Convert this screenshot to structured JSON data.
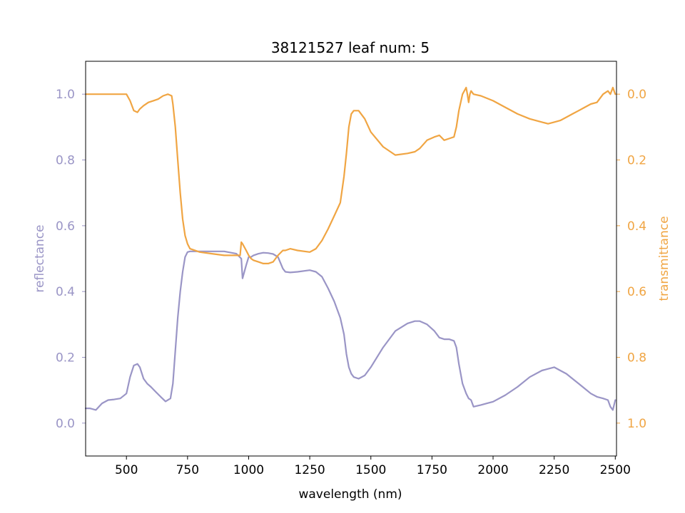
{
  "chart_data": {
    "type": "line",
    "title": "38121527 leaf num: 5",
    "xlabel": "wavelength (nm)",
    "xlim": [
      333,
      2505
    ],
    "x_ticks": [
      "500",
      "750",
      "1000",
      "1250",
      "1500",
      "1750",
      "2000",
      "2250",
      "2500"
    ],
    "grid": false,
    "legend": "none",
    "left_axis": {
      "label": "reflectance",
      "ylim": [
        -0.1,
        1.1
      ],
      "ticks": [
        "0.0",
        "0.2",
        "0.4",
        "0.6",
        "0.8",
        "1.0"
      ],
      "color": "#9a95c6"
    },
    "right_axis": {
      "label": "transmittance",
      "ylim": [
        1.1,
        -0.1
      ],
      "inverted": true,
      "ticks": [
        "0.0",
        "0.2",
        "0.4",
        "0.6",
        "0.8",
        "1.0"
      ],
      "color": "#f0a543"
    },
    "series": [
      {
        "axis": "left",
        "color": "#9a95c6",
        "x": [
          333,
          350,
          375,
          400,
          425,
          450,
          475,
          500,
          515,
          530,
          545,
          555,
          570,
          585,
          600,
          620,
          640,
          660,
          680,
          690,
          700,
          710,
          720,
          730,
          740,
          750,
          760,
          800,
          850,
          900,
          950,
          970,
          975,
          990,
          1000,
          1010,
          1020,
          1040,
          1060,
          1080,
          1100,
          1120,
          1140,
          1150,
          1170,
          1200,
          1250,
          1275,
          1300,
          1325,
          1350,
          1375,
          1390,
          1400,
          1410,
          1420,
          1430,
          1450,
          1475,
          1500,
          1550,
          1600,
          1650,
          1680,
          1700,
          1730,
          1760,
          1780,
          1800,
          1820,
          1840,
          1850,
          1860,
          1875,
          1890,
          1900,
          1910,
          1920,
          1950,
          1975,
          2000,
          2050,
          2100,
          2150,
          2200,
          2225,
          2250,
          2275,
          2300,
          2325,
          2350,
          2375,
          2400,
          2425,
          2450,
          2470,
          2480,
          2490,
          2500
        ],
        "y": [
          0.045,
          0.045,
          0.04,
          0.06,
          0.07,
          0.072,
          0.075,
          0.09,
          0.14,
          0.175,
          0.18,
          0.17,
          0.135,
          0.12,
          0.11,
          0.095,
          0.08,
          0.066,
          0.075,
          0.12,
          0.22,
          0.32,
          0.4,
          0.46,
          0.505,
          0.52,
          0.522,
          0.522,
          0.522,
          0.522,
          0.515,
          0.5,
          0.44,
          0.48,
          0.505,
          0.505,
          0.51,
          0.515,
          0.518,
          0.517,
          0.514,
          0.505,
          0.47,
          0.46,
          0.458,
          0.46,
          0.465,
          0.46,
          0.445,
          0.41,
          0.37,
          0.32,
          0.27,
          0.21,
          0.17,
          0.15,
          0.14,
          0.135,
          0.145,
          0.17,
          0.23,
          0.28,
          0.303,
          0.31,
          0.31,
          0.3,
          0.28,
          0.26,
          0.255,
          0.255,
          0.25,
          0.23,
          0.18,
          0.12,
          0.09,
          0.075,
          0.07,
          0.05,
          0.055,
          0.06,
          0.065,
          0.085,
          0.11,
          0.14,
          0.16,
          0.165,
          0.17,
          0.16,
          0.15,
          0.135,
          0.12,
          0.105,
          0.09,
          0.08,
          0.075,
          0.07,
          0.05,
          0.04,
          0.07
        ]
      },
      {
        "axis": "right",
        "color": "#f0a543",
        "x": [
          333,
          350,
          400,
          450,
          500,
          515,
          530,
          545,
          555,
          570,
          590,
          610,
          630,
          650,
          670,
          685,
          690,
          700,
          710,
          720,
          730,
          740,
          750,
          760,
          800,
          850,
          900,
          940,
          965,
          970,
          975,
          990,
          1000,
          1010,
          1020,
          1040,
          1060,
          1080,
          1100,
          1120,
          1140,
          1150,
          1170,
          1200,
          1250,
          1275,
          1300,
          1325,
          1350,
          1375,
          1390,
          1400,
          1410,
          1420,
          1430,
          1450,
          1475,
          1500,
          1550,
          1600,
          1650,
          1680,
          1700,
          1730,
          1760,
          1780,
          1800,
          1820,
          1840,
          1850,
          1860,
          1875,
          1890,
          1895,
          1900,
          1905,
          1910,
          1920,
          1950,
          2000,
          2050,
          2100,
          2150,
          2200,
          2225,
          2250,
          2275,
          2300,
          2325,
          2350,
          2375,
          2400,
          2425,
          2450,
          2470,
          2480,
          2490,
          2500
        ],
        "y": [
          0.0,
          0.0,
          0.0,
          0.0,
          0.0,
          0.02,
          0.05,
          0.055,
          0.045,
          0.035,
          0.025,
          0.02,
          0.015,
          0.005,
          0.0,
          0.005,
          0.03,
          0.1,
          0.2,
          0.3,
          0.38,
          0.43,
          0.455,
          0.47,
          0.48,
          0.485,
          0.49,
          0.49,
          0.49,
          0.45,
          0.455,
          0.475,
          0.49,
          0.5,
          0.505,
          0.51,
          0.515,
          0.515,
          0.51,
          0.49,
          0.475,
          0.475,
          0.47,
          0.475,
          0.48,
          0.47,
          0.445,
          0.41,
          0.37,
          0.33,
          0.25,
          0.18,
          0.1,
          0.06,
          0.05,
          0.05,
          0.075,
          0.115,
          0.16,
          0.185,
          0.18,
          0.175,
          0.165,
          0.14,
          0.13,
          0.125,
          0.14,
          0.135,
          0.13,
          0.1,
          0.05,
          0.0,
          -0.02,
          0.0,
          0.025,
          0.0,
          -0.01,
          0.0,
          0.005,
          0.02,
          0.04,
          0.06,
          0.075,
          0.085,
          0.09,
          0.085,
          0.08,
          0.07,
          0.06,
          0.05,
          0.04,
          0.03,
          0.025,
          0.0,
          -0.01,
          0.0,
          -0.02,
          0.0
        ]
      }
    ]
  }
}
